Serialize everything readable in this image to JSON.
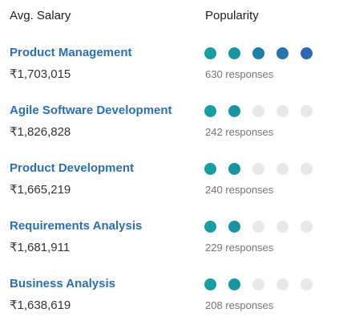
{
  "header": {
    "salary_label": "Avg. Salary",
    "popularity_label": "Popularity"
  },
  "colors": {
    "link": "#2a6fb8",
    "dot_empty": "#e8e8e8",
    "dot_scale": [
      "#149fa0",
      "#1596a2",
      "#1c7fa8",
      "#2175b0",
      "#2b66b8"
    ]
  },
  "popularity_max": 5,
  "rows": [
    {
      "skill": "Product Management",
      "salary": "₹1,703,015",
      "popularity": 5,
      "responses": "630 responses"
    },
    {
      "skill": "Agile Software Development",
      "salary": "₹1,826,828",
      "popularity": 2,
      "responses": "242 responses"
    },
    {
      "skill": "Product Development",
      "salary": "₹1,665,219",
      "popularity": 2,
      "responses": "240 responses"
    },
    {
      "skill": "Requirements Analysis",
      "salary": "₹1,681,911",
      "popularity": 2,
      "responses": "229 responses"
    },
    {
      "skill": "Business Analysis",
      "salary": "₹1,638,619",
      "popularity": 2,
      "responses": "208 responses"
    }
  ]
}
